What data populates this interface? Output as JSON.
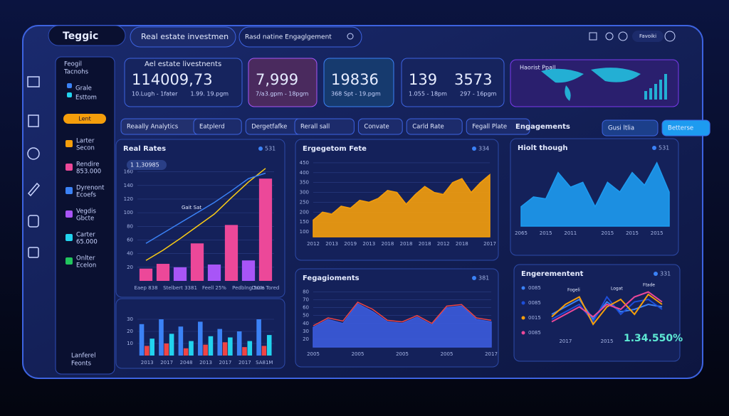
{
  "header": {
    "logo": "Teggic",
    "dropdown": "Real estate investmen",
    "search": "Rasd natine Engaglgement",
    "profile": "Favoiki"
  },
  "sidebar": {
    "title_lines": [
      "Feogil",
      "Tacnohs"
    ],
    "legend": [
      {
        "label": "Grale",
        "color": "#3b82f6"
      },
      {
        "label": "Esttom",
        "color": "#22d3ee"
      }
    ],
    "button": "Lent",
    "items": [
      {
        "label": "Larter",
        "sub": "Secon",
        "color": "#f59e0b"
      },
      {
        "label": "Rendire",
        "sub": "853.000",
        "color": "#ec4899"
      },
      {
        "label": "Dyrenont",
        "sub": "Ecoefs",
        "color": "#3b82f6"
      },
      {
        "label": "Vegdis",
        "sub": "Gbcte",
        "color": "#a855f7"
      },
      {
        "label": "Carter",
        "sub": "65.000",
        "color": "#22d3ee"
      },
      {
        "label": "Onlter",
        "sub": "Ecelon",
        "color": "#22c55e"
      }
    ],
    "footer_lines": [
      "Lanferel",
      "Feonts"
    ]
  },
  "kpis": [
    {
      "title": "Ael estate livestnents",
      "values": [
        "114009,73"
      ],
      "notes": [
        "10.Lugh - 1fater",
        "1.99. 19.pgm"
      ]
    },
    {
      "values": [
        "7,999"
      ],
      "notes": [
        "7/a3.gpm - 18pgm"
      ]
    },
    {
      "values": [
        "19836"
      ],
      "notes": [
        "368 Spt - 19.pgm"
      ]
    },
    {
      "values": [
        "139",
        "3573"
      ],
      "notes": [
        "1.055 - 18pm",
        "297 - 16pgm"
      ]
    }
  ],
  "map": {
    "title": "Haorist Ppall"
  },
  "filters": {
    "title": "Reaally Analytics",
    "left": [
      "Eatplerd",
      "Dergetfafke"
    ],
    "mid": [
      "Rerall sall",
      "Convate",
      "Carld Rate",
      "Fegall Plate"
    ],
    "right_title": "Engagements",
    "right": [
      "Gusi ltlia",
      "Betterse"
    ]
  },
  "chart_data": [
    {
      "type": "bar",
      "title": "Real Rates",
      "badge": "531",
      "tag": "1 1,30985",
      "annotation": "Gait Sat",
      "ylim": [
        0,
        170
      ],
      "yticks": [
        20,
        40,
        60,
        80,
        100,
        120,
        140,
        160
      ],
      "grid": true,
      "categories": [
        "Eaep 838",
        null,
        "Stelbert 3381",
        null,
        "Feell 25%",
        null,
        "Pedblng 50%",
        "Dase Tored"
      ],
      "values": [
        18,
        25,
        20,
        55,
        24,
        82,
        30,
        150
      ],
      "colors": [
        "#ec4899",
        "#ec4899",
        "#a855f7",
        "#ec4899",
        "#a855f7",
        "#ec4899",
        "#a855f7",
        "#ec4899"
      ],
      "lines": [
        {
          "color": "#facc15",
          "values": [
            30,
            45,
            62,
            80,
            98,
            122,
            145,
            165
          ]
        },
        {
          "color": "#3b82f6",
          "values": [
            55,
            70,
            85,
            100,
            115,
            132,
            150,
            158
          ]
        }
      ]
    },
    {
      "type": "bar",
      "ylim": [
        0,
        40
      ],
      "yticks": [
        10,
        20,
        30
      ],
      "grid": true,
      "categories": [
        "2013",
        "2017",
        "2048",
        "2013",
        "2017",
        "2017",
        "SA81M"
      ],
      "series": [
        {
          "color": "#3b82f6",
          "values": [
            26,
            30,
            24,
            28,
            22,
            20,
            30
          ]
        },
        {
          "color": "#ef4444",
          "values": [
            8,
            10,
            6,
            9,
            11,
            7,
            8
          ]
        },
        {
          "color": "#22d3ee",
          "values": [
            14,
            18,
            12,
            16,
            15,
            12,
            17
          ]
        }
      ]
    },
    {
      "type": "area",
      "title": "Ergegetom Fete",
      "badge": "334",
      "ylim": [
        75,
        475
      ],
      "yticks": [
        100,
        150,
        200,
        250,
        300,
        350,
        400,
        450
      ],
      "grid": true,
      "categories": [
        "2012",
        null,
        "2013",
        null,
        "2019",
        null,
        "2013",
        null,
        "2018",
        null,
        "2018",
        null,
        "2018",
        null,
        "2012",
        null,
        "2018",
        null,
        null,
        "2017"
      ],
      "series": [
        {
          "color": "#f59e0b",
          "values": [
            160,
            200,
            190,
            230,
            220,
            260,
            250,
            270,
            310,
            300,
            240,
            290,
            330,
            300,
            290,
            350,
            370,
            300,
            350,
            390
          ]
        }
      ]
    },
    {
      "type": "area",
      "title": "Fegagioments",
      "badge": "381",
      "ylim": [
        10,
        85
      ],
      "yticks": [
        20,
        30,
        40,
        50,
        60,
        70,
        80
      ],
      "grid": true,
      "categories": [
        "2005",
        null,
        null,
        "2005",
        null,
        null,
        "2005",
        null,
        null,
        "2005",
        null,
        null,
        "2017"
      ],
      "series": [
        {
          "color": "#3b5bdb",
          "values": [
            35,
            45,
            40,
            65,
            55,
            42,
            40,
            48,
            38,
            60,
            62,
            45,
            42
          ]
        }
      ],
      "lines": [
        {
          "color": "#ef4444",
          "values": [
            37,
            47,
            43,
            67,
            58,
            44,
            42,
            50,
            40,
            62,
            64,
            47,
            44
          ]
        }
      ]
    },
    {
      "type": "area",
      "title": "Hiolt though",
      "badge": "531",
      "ylim": [
        0,
        70
      ],
      "categories": [
        "2065",
        null,
        "2015",
        null,
        "2011",
        null,
        null,
        "2015",
        null,
        "2015",
        null,
        "2015",
        null
      ],
      "series": [
        {
          "color": "#1d9bf0",
          "values": [
            20,
            30,
            28,
            55,
            40,
            45,
            20,
            45,
            35,
            55,
            42,
            65,
            35
          ]
        }
      ]
    },
    {
      "type": "line",
      "title": "Engerementent",
      "badge": "331",
      "ylim": [
        0,
        100
      ],
      "highlight": "1.34.550%",
      "notes": [
        "Fogeli",
        "Logat",
        "Ftade"
      ],
      "categories": [
        null,
        "2017",
        null,
        null,
        "2015",
        null,
        null,
        null,
        null
      ],
      "series": [
        {
          "name": "0085",
          "color": "#3b82f6",
          "values": [
            40,
            55,
            70,
            30,
            65,
            45,
            50,
            60,
            55
          ]
        },
        {
          "name": "0085",
          "color": "#1d4ed8",
          "values": [
            30,
            45,
            60,
            25,
            75,
            40,
            65,
            70,
            50
          ]
        },
        {
          "name": "0015",
          "color": "#f59e0b",
          "values": [
            35,
            60,
            75,
            20,
            55,
            70,
            40,
            80,
            60
          ]
        },
        {
          "name": "0085",
          "color": "#ec4899",
          "values": [
            25,
            40,
            55,
            35,
            60,
            50,
            75,
            85,
            65
          ]
        }
      ]
    }
  ]
}
